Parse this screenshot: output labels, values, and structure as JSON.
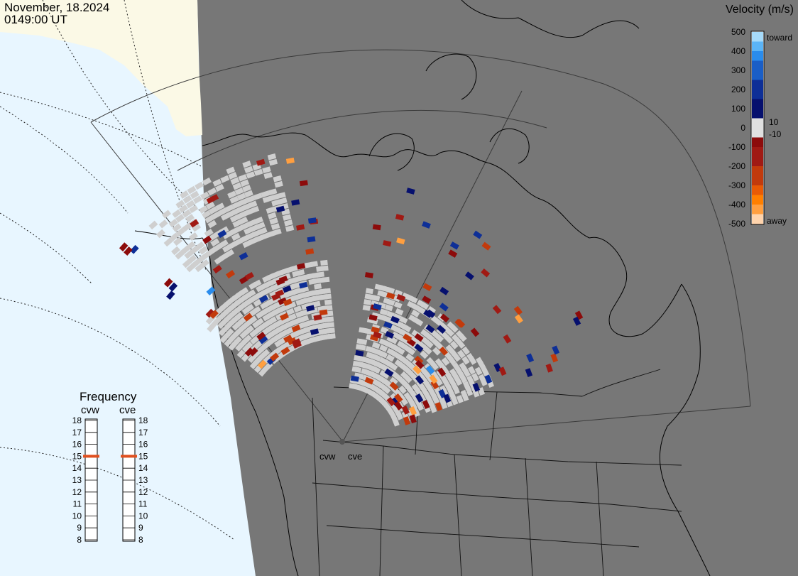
{
  "header": {
    "date": "November, 18.2024",
    "time": "0149:00 UT"
  },
  "radars": [
    {
      "code": "cvw",
      "frequency": 15
    },
    {
      "code": "cve",
      "frequency": 15
    }
  ],
  "colorbar": {
    "title": "Velocity (m/s)",
    "ticks": [
      500,
      400,
      300,
      200,
      100,
      0,
      -100,
      -200,
      -300,
      -400,
      -500
    ],
    "inner_labels": [
      "10",
      "-10"
    ],
    "toward_label": "toward",
    "away_label": "away"
  },
  "frequency_panel": {
    "title": "Frequency",
    "scale": [
      18,
      17,
      16,
      15,
      14,
      13,
      12,
      11,
      10,
      9,
      8
    ]
  },
  "colors": {
    "ocean": "#e8f6ff",
    "night_land": "#777777",
    "day_land": "#fbf9e6",
    "ground_scatter": "#cfcfcf",
    "marker": "#e05020",
    "velocity_scale": [
      "#ffd4ad",
      "#ff9f40",
      "#ff7f00",
      "#e85a05",
      "#c23a0c",
      "#a01a14",
      "#8c0b0b",
      "#06106e",
      "#0e2f97",
      "#1a5ec6",
      "#2a8cec",
      "#5bb4f6",
      "#a6daf9"
    ]
  }
}
